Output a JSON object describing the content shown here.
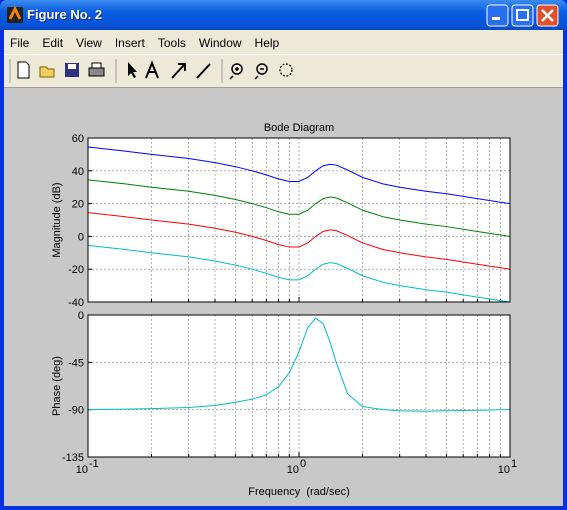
{
  "window": {
    "title": "Figure No. 2",
    "menu": [
      "File",
      "Edit",
      "View",
      "Insert",
      "Tools",
      "Window",
      "Help"
    ]
  },
  "chart_data": [
    {
      "type": "line",
      "title": "Bode Diagram",
      "ylabel": "Magnitude (dB)",
      "xscale": "log",
      "grid": true,
      "x": [
        0.1,
        0.15,
        0.2,
        0.3,
        0.4,
        0.5,
        0.6,
        0.7,
        0.8,
        0.9,
        1.0,
        1.1,
        1.2,
        1.3,
        1.4,
        1.5,
        1.7,
        2,
        2.5,
        3,
        4,
        5,
        7,
        10
      ],
      "series": [
        {
          "color": "#0000ff",
          "values": [
            54.5,
            52,
            50,
            47.5,
            45,
            42.5,
            40,
            37.5,
            35,
            33.5,
            33.5,
            36,
            40,
            43,
            44,
            43.5,
            40.5,
            36,
            32,
            30,
            27.5,
            26,
            23,
            20
          ]
        },
        {
          "color": "#008000",
          "values": [
            34.5,
            32,
            30,
            27.5,
            25,
            22.5,
            20,
            17.5,
            15,
            13.5,
            13.5,
            16,
            20,
            23,
            24,
            23.5,
            20.5,
            16,
            12,
            10,
            7.5,
            6,
            3,
            0
          ]
        },
        {
          "color": "#ff0000",
          "values": [
            14.5,
            12,
            10,
            7.5,
            5,
            2.5,
            0,
            -2.5,
            -5,
            -6.5,
            -6.5,
            -4,
            0,
            3,
            4,
            3.5,
            0.5,
            -4,
            -8,
            -10,
            -12.5,
            -14,
            -17,
            -20
          ]
        },
        {
          "color": "#00bfbf",
          "values": [
            -5.5,
            -8,
            -10,
            -12.5,
            -15,
            -17.5,
            -20,
            -22.5,
            -25,
            -26.5,
            -26.5,
            -24,
            -20,
            -17,
            -16,
            -16.5,
            -19.5,
            -24,
            -28,
            -30,
            -32.5,
            -34,
            -37,
            -40
          ]
        }
      ],
      "xlim": [
        0.1,
        10
      ],
      "xticks": [
        0.1,
        1,
        10
      ],
      "xminorticks": [
        0.2,
        0.3,
        0.4,
        0.5,
        0.6,
        0.7,
        0.8,
        0.9,
        2,
        3,
        4,
        5,
        6,
        7,
        8,
        9
      ],
      "ylim": [
        -40,
        60
      ],
      "yticks": [
        -40,
        -20,
        0,
        20,
        40,
        60
      ]
    },
    {
      "type": "line",
      "xlabel": "Frequency  (rad/sec)",
      "ylabel": "Phase (deg)",
      "xscale": "log",
      "grid": true,
      "x": [
        0.1,
        0.15,
        0.2,
        0.3,
        0.4,
        0.5,
        0.6,
        0.7,
        0.8,
        0.9,
        1.0,
        1.1,
        1.2,
        1.3,
        1.4,
        1.5,
        1.7,
        2,
        2.5,
        3,
        4,
        5,
        7,
        10
      ],
      "series": [
        {
          "color": "#00bfbf",
          "values": [
            -90,
            -89.5,
            -89,
            -88,
            -86,
            -83,
            -80,
            -76,
            -68,
            -55,
            -35,
            -12,
            -3,
            -8,
            -25,
            -45,
            -75,
            -87,
            -90,
            -91,
            -91.5,
            -91,
            -90.5,
            -90
          ]
        }
      ],
      "xlim": [
        0.1,
        10
      ],
      "xticks": [
        {
          "value": 0.1,
          "label": "10",
          "exponent": "-1"
        },
        {
          "value": 1,
          "label": "10",
          "exponent": "0"
        },
        {
          "value": 10,
          "label": "10",
          "exponent": "1"
        }
      ],
      "xminorticks": [
        0.2,
        0.3,
        0.4,
        0.5,
        0.6,
        0.7,
        0.8,
        0.9,
        2,
        3,
        4,
        5,
        6,
        7,
        8,
        9
      ],
      "ylim": [
        -135,
        0
      ],
      "yticks": [
        -135,
        -90,
        -45,
        0
      ]
    }
  ]
}
